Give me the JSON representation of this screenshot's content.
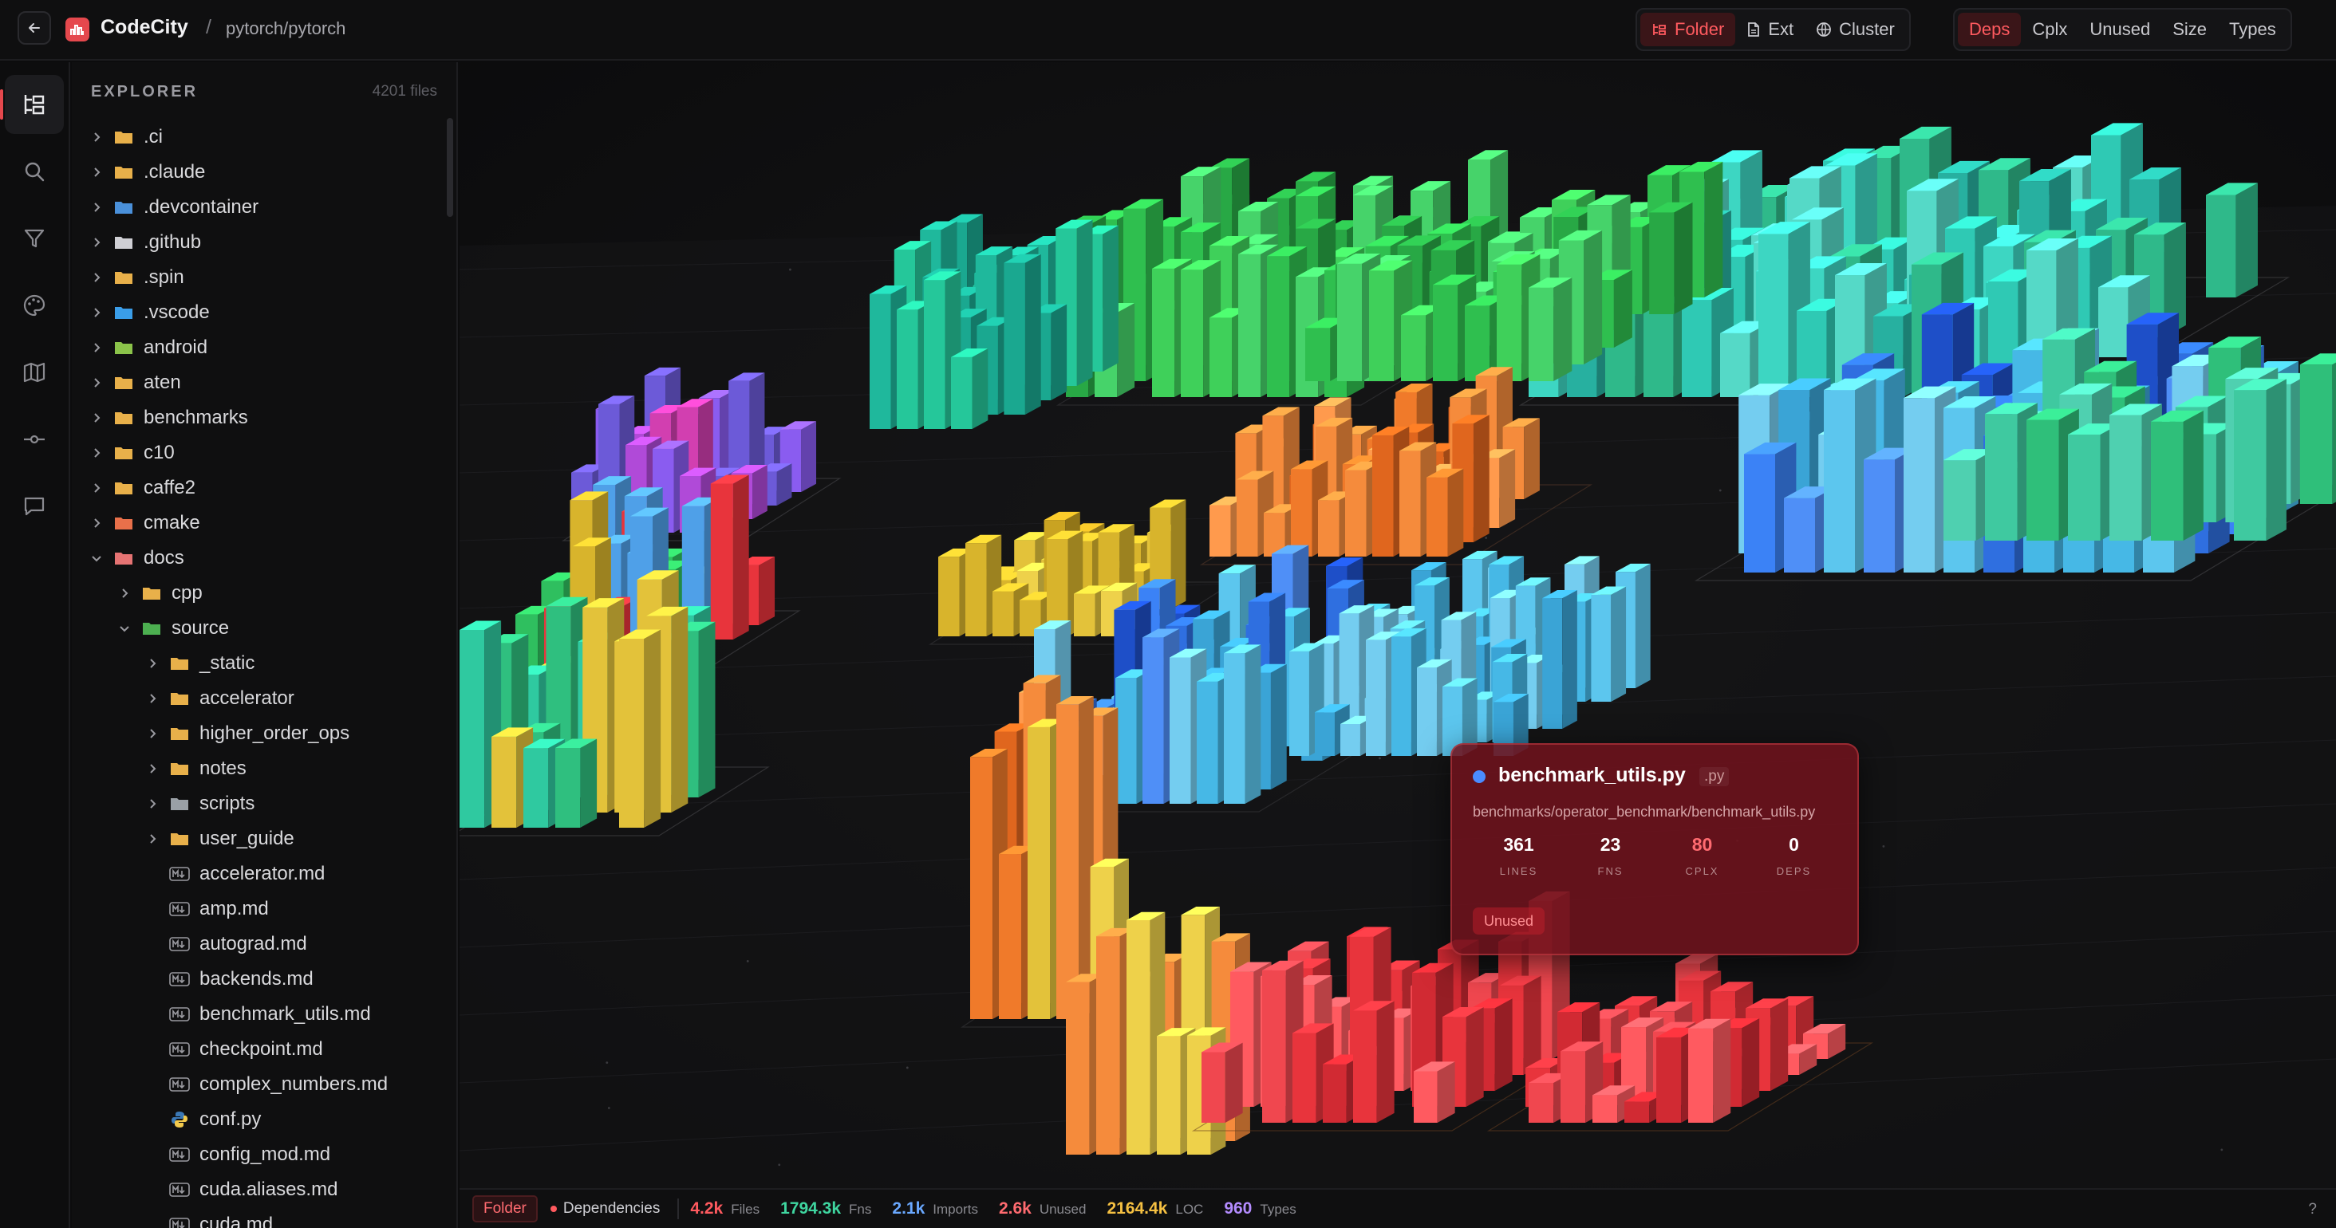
{
  "header": {
    "app_name": "CodeCity",
    "separator": "/",
    "repo": "pytorch/pytorch",
    "group_modes": [
      {
        "label": "Folder",
        "icon": "folder-tree-icon",
        "active": true
      },
      {
        "label": "Ext",
        "icon": "file-icon",
        "active": false
      },
      {
        "label": "Cluster",
        "icon": "globe-icon",
        "active": false
      }
    ],
    "color_modes": [
      {
        "label": "Deps",
        "active": true
      },
      {
        "label": "Cplx",
        "active": false
      },
      {
        "label": "Unused",
        "active": false
      },
      {
        "label": "Size",
        "active": false
      },
      {
        "label": "Types",
        "active": false
      }
    ]
  },
  "rail": [
    "explorer-icon",
    "search-icon",
    "filter-icon",
    "palette-icon",
    "map-icon",
    "commit-icon",
    "comment-icon"
  ],
  "explorer": {
    "title": "EXPLORER",
    "count": "4201 files",
    "items": [
      {
        "label": ".ci",
        "depth": 0,
        "kind": "folder",
        "expanded": false,
        "icon": "folder-icon"
      },
      {
        "label": ".claude",
        "depth": 0,
        "kind": "folder",
        "expanded": false,
        "icon": "folder-icon"
      },
      {
        "label": ".devcontainer",
        "depth": 0,
        "kind": "folder",
        "expanded": false,
        "icon": "devcontainer-folder-icon"
      },
      {
        "label": ".github",
        "depth": 0,
        "kind": "folder",
        "expanded": false,
        "icon": "github-folder-icon"
      },
      {
        "label": ".spin",
        "depth": 0,
        "kind": "folder",
        "expanded": false,
        "icon": "folder-icon"
      },
      {
        "label": ".vscode",
        "depth": 0,
        "kind": "folder",
        "expanded": false,
        "icon": "vscode-folder-icon"
      },
      {
        "label": "android",
        "depth": 0,
        "kind": "folder",
        "expanded": false,
        "icon": "android-folder-icon"
      },
      {
        "label": "aten",
        "depth": 0,
        "kind": "folder",
        "expanded": false,
        "icon": "folder-icon"
      },
      {
        "label": "benchmarks",
        "depth": 0,
        "kind": "folder",
        "expanded": false,
        "icon": "folder-icon"
      },
      {
        "label": "c10",
        "depth": 0,
        "kind": "folder",
        "expanded": false,
        "icon": "folder-icon"
      },
      {
        "label": "caffe2",
        "depth": 0,
        "kind": "folder",
        "expanded": false,
        "icon": "folder-icon"
      },
      {
        "label": "cmake",
        "depth": 0,
        "kind": "folder",
        "expanded": false,
        "icon": "cmake-folder-icon"
      },
      {
        "label": "docs",
        "depth": 0,
        "kind": "folder",
        "expanded": true,
        "icon": "docs-folder-icon"
      },
      {
        "label": "cpp",
        "depth": 1,
        "kind": "folder",
        "expanded": false,
        "icon": "folder-icon"
      },
      {
        "label": "source",
        "depth": 1,
        "kind": "folder",
        "expanded": true,
        "icon": "source-folder-icon"
      },
      {
        "label": "_static",
        "depth": 2,
        "kind": "folder",
        "expanded": false,
        "icon": "folder-icon"
      },
      {
        "label": "accelerator",
        "depth": 2,
        "kind": "folder",
        "expanded": false,
        "icon": "folder-icon"
      },
      {
        "label": "higher_order_ops",
        "depth": 2,
        "kind": "folder",
        "expanded": false,
        "icon": "folder-icon"
      },
      {
        "label": "notes",
        "depth": 2,
        "kind": "folder",
        "expanded": false,
        "icon": "folder-icon"
      },
      {
        "label": "scripts",
        "depth": 2,
        "kind": "folder",
        "expanded": false,
        "icon": "scripts-folder-icon"
      },
      {
        "label": "user_guide",
        "depth": 2,
        "kind": "folder",
        "expanded": false,
        "icon": "folder-icon"
      },
      {
        "label": "accelerator.md",
        "depth": 2,
        "kind": "file",
        "icon": "markdown-icon"
      },
      {
        "label": "amp.md",
        "depth": 2,
        "kind": "file",
        "icon": "markdown-icon"
      },
      {
        "label": "autograd.md",
        "depth": 2,
        "kind": "file",
        "icon": "markdown-icon"
      },
      {
        "label": "backends.md",
        "depth": 2,
        "kind": "file",
        "icon": "markdown-icon"
      },
      {
        "label": "benchmark_utils.md",
        "depth": 2,
        "kind": "file",
        "icon": "markdown-icon"
      },
      {
        "label": "checkpoint.md",
        "depth": 2,
        "kind": "file",
        "icon": "markdown-icon"
      },
      {
        "label": "complex_numbers.md",
        "depth": 2,
        "kind": "file",
        "icon": "markdown-icon"
      },
      {
        "label": "conf.py",
        "depth": 2,
        "kind": "file",
        "icon": "python-icon"
      },
      {
        "label": "config_mod.md",
        "depth": 2,
        "kind": "file",
        "icon": "markdown-icon"
      },
      {
        "label": "cuda.aliases.md",
        "depth": 2,
        "kind": "file",
        "icon": "markdown-icon"
      },
      {
        "label": "cuda.md",
        "depth": 2,
        "kind": "file",
        "icon": "markdown-icon"
      }
    ]
  },
  "tooltip": {
    "name": "benchmark_utils.py",
    "ext": ".py",
    "path": "benchmarks/operator_benchmark/benchmark_utils.py",
    "stats": [
      {
        "value": "361",
        "label": "LINES",
        "highlight": false
      },
      {
        "value": "23",
        "label": "FNS",
        "highlight": false
      },
      {
        "value": "80",
        "label": "CPLX",
        "highlight": true
      },
      {
        "value": "0",
        "label": "DEPS",
        "highlight": false
      }
    ],
    "badge": "Unused"
  },
  "statusbar": {
    "mode": "Folder",
    "color_mode": "Dependencies",
    "stats": [
      {
        "value": "4.2k",
        "label": "Files",
        "color": "#ff5a5f"
      },
      {
        "value": "1794.3k",
        "label": "Fns",
        "color": "#3fd6a0"
      },
      {
        "value": "2.1k",
        "label": "Imports",
        "color": "#6aa8ff"
      },
      {
        "value": "2.6k",
        "label": "Unused",
        "color": "#ff6b70"
      },
      {
        "value": "2164.4k",
        "label": "LOC",
        "color": "#f5c042"
      },
      {
        "value": "960",
        "label": "Types",
        "color": "#b48cff"
      }
    ],
    "help": "?"
  }
}
